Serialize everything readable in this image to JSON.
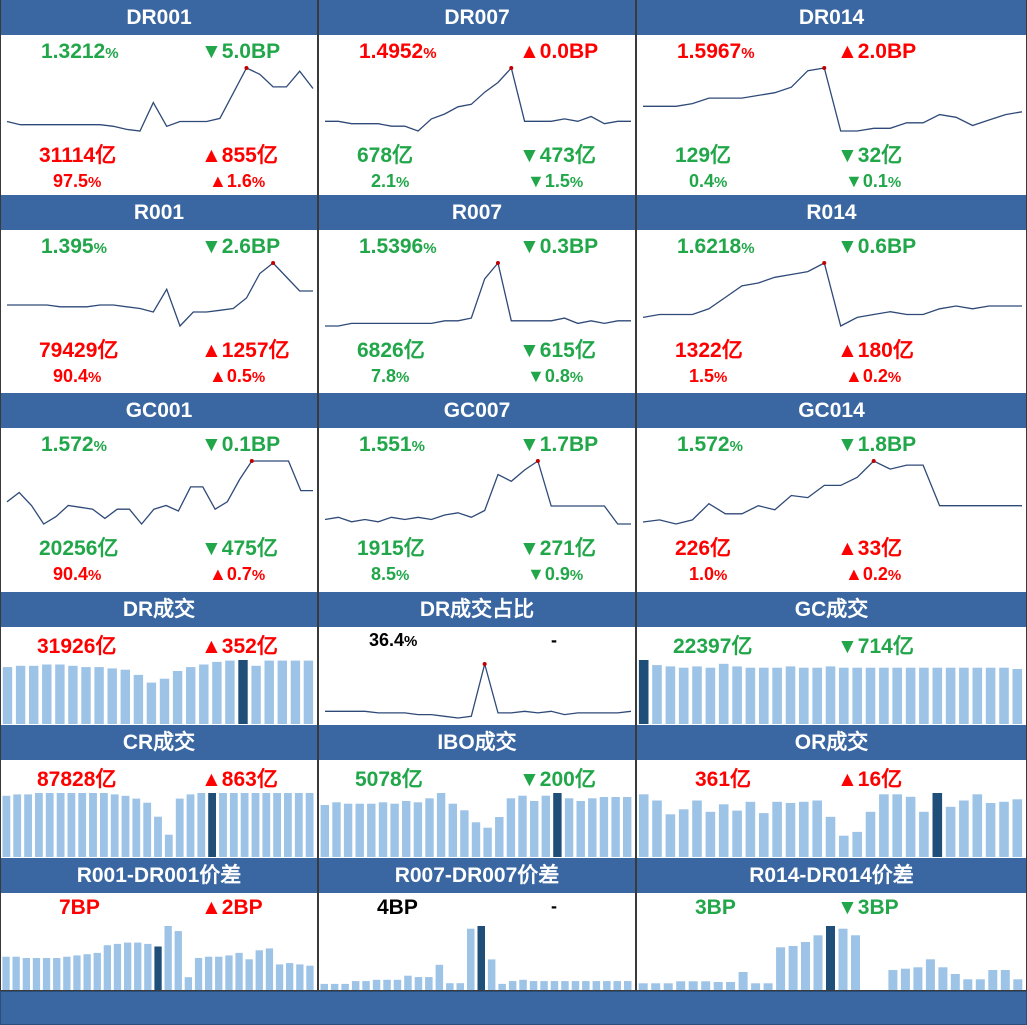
{
  "colors": {
    "header_bg": "#3a67a1",
    "up": "#ff0000",
    "down": "#21a74a",
    "line": "#2f4a78",
    "bar": "#9dc3e6",
    "bar_highlight": "#1f4e79",
    "marker": "#c00000"
  },
  "rows": [
    {
      "type": "rate",
      "cells": [
        {
          "title": "DR001",
          "rate": "1.3212",
          "rate_unit": "%",
          "rate_dir": "down",
          "change": "5.0BP",
          "change_arrow": "▼",
          "change_dir": "down",
          "volume": "31114亿",
          "volume_dir": "up",
          "vol_change": "855亿",
          "vol_arrow": "▲",
          "vol_dir": "up",
          "share": "97.5",
          "share_unit": "%",
          "share_dir": "up",
          "share_change": "1.6",
          "share_change_unit": "%",
          "share_arrow": "▲",
          "share_change_dir": "up",
          "series": [
            62,
            60,
            60,
            60,
            60,
            60,
            60,
            60,
            59,
            57,
            56,
            74,
            59,
            62,
            62,
            62,
            64,
            80,
            96,
            92,
            84,
            84,
            94,
            83
          ]
        },
        {
          "title": "DR007",
          "rate": "1.4952",
          "rate_unit": "%",
          "rate_dir": "up",
          "change": "0.0BP",
          "change_arrow": "▲",
          "change_dir": "up",
          "volume": "678亿",
          "volume_dir": "down",
          "vol_change": "473亿",
          "vol_arrow": "▼",
          "vol_dir": "down",
          "share": "2.1",
          "share_unit": "%",
          "share_dir": "down",
          "share_change": "1.5",
          "share_change_unit": "%",
          "share_arrow": "▼",
          "share_change_dir": "down",
          "series": [
            56,
            56,
            55,
            55,
            55,
            54,
            54,
            52,
            57,
            59,
            62,
            63,
            68,
            72,
            78,
            56,
            56,
            56,
            57,
            56,
            58,
            55,
            56,
            56
          ]
        },
        {
          "title": "DR014",
          "rate": "1.5967",
          "rate_unit": "%",
          "rate_dir": "up",
          "change": "2.0BP",
          "change_arrow": "▲",
          "change_dir": "up",
          "volume": "129亿",
          "volume_dir": "down",
          "vol_change": "32亿",
          "vol_arrow": "▼",
          "vol_dir": "down",
          "share": "0.4",
          "share_unit": "%",
          "share_dir": "down",
          "share_change": "0.1",
          "share_change_unit": "%",
          "share_arrow": "▼",
          "share_change_dir": "down",
          "series": [
            59,
            59,
            59,
            60,
            62,
            62,
            62,
            63,
            64,
            66,
            72,
            73,
            50,
            50,
            51,
            51,
            53,
            53,
            56,
            55,
            52,
            54,
            56,
            57
          ]
        }
      ]
    },
    {
      "type": "rate",
      "cells": [
        {
          "title": "R001",
          "rate": "1.395",
          "rate_unit": "%",
          "rate_dir": "down",
          "change": "2.6BP",
          "change_arrow": "▼",
          "change_dir": "down",
          "volume": "79429亿",
          "volume_dir": "up",
          "vol_change": "1257亿",
          "vol_arrow": "▲",
          "vol_dir": "up",
          "share": "90.4",
          "share_unit": "%",
          "share_dir": "up",
          "share_change": "0.5",
          "share_change_unit": "%",
          "share_arrow": "▲",
          "share_change_dir": "up",
          "series": [
            64,
            64,
            64,
            64,
            63,
            63,
            63,
            64,
            64,
            63,
            62,
            60,
            73,
            52,
            60,
            60,
            61,
            62,
            68,
            82,
            88,
            80,
            72,
            72
          ]
        },
        {
          "title": "R007",
          "rate": "1.5396",
          "rate_unit": "%",
          "rate_dir": "green",
          "change": "0.3BP",
          "change_arrow": "▼",
          "change_dir": "down",
          "volume": "6826亿",
          "volume_dir": "down",
          "vol_change": "615亿",
          "vol_arrow": "▼",
          "vol_dir": "down",
          "share": "7.8",
          "share_unit": "%",
          "share_dir": "down",
          "share_change": "0.8",
          "share_change_unit": "%",
          "share_arrow": "▼",
          "share_change_dir": "down",
          "series": [
            54,
            54,
            55,
            55,
            55,
            55,
            55,
            55,
            55,
            56,
            56,
            57,
            72,
            78,
            56,
            56,
            56,
            56,
            57,
            55,
            56,
            55,
            56,
            56
          ]
        },
        {
          "title": "R014",
          "rate": "1.6218",
          "rate_unit": "%",
          "rate_dir": "down",
          "change": "0.6BP",
          "change_arrow": "▼",
          "change_dir": "down",
          "volume": "1322亿",
          "volume_dir": "up",
          "vol_change": "180亿",
          "vol_arrow": "▲",
          "vol_dir": "up",
          "share": "1.5",
          "share_unit": "%",
          "share_dir": "up",
          "share_change": "0.2",
          "share_change_unit": "%",
          "share_arrow": "▲",
          "share_change_dir": "up",
          "series": [
            59,
            60,
            60,
            60,
            62,
            66,
            70,
            71,
            73,
            74,
            75,
            78,
            56,
            59,
            60,
            61,
            60,
            60,
            62,
            63,
            62,
            63,
            63,
            63
          ]
        }
      ]
    },
    {
      "type": "rate",
      "cells": [
        {
          "title": "GC001",
          "rate": "1.572",
          "rate_unit": "%",
          "rate_dir": "down",
          "change": "0.1BP",
          "change_arrow": "▼",
          "change_dir": "down",
          "volume": "20256亿",
          "volume_dir": "down",
          "vol_change": "475亿",
          "vol_arrow": "▼",
          "vol_dir": "down",
          "share": "90.4",
          "share_unit": "%",
          "share_dir": "up",
          "share_change": "0.7",
          "share_change_unit": "%",
          "share_arrow": "▲",
          "share_change_dir": "up",
          "series": [
            60,
            65,
            58,
            48,
            52,
            58,
            57,
            56,
            51,
            56,
            56,
            48,
            56,
            58,
            55,
            68,
            68,
            56,
            60,
            72,
            82,
            82,
            82,
            82,
            66,
            66
          ]
        },
        {
          "title": "GC007",
          "rate": "1.551",
          "rate_unit": "%",
          "rate_dir": "down",
          "change": "1.7BP",
          "change_arrow": "▼",
          "change_dir": "down",
          "volume": "1915亿",
          "volume_dir": "down",
          "vol_change": "271亿",
          "vol_arrow": "▼",
          "vol_dir": "down",
          "share": "8.5",
          "share_unit": "%",
          "share_dir": "down",
          "share_change": "0.9",
          "share_change_unit": "%",
          "share_arrow": "▼",
          "share_change_dir": "down",
          "series": [
            54,
            55,
            53,
            54,
            53,
            55,
            54,
            55,
            54,
            56,
            57,
            55,
            58,
            74,
            71,
            76,
            80,
            60,
            60,
            60,
            60,
            60,
            52,
            52
          ]
        },
        {
          "title": "GC014",
          "rate": "1.572",
          "rate_unit": "%",
          "rate_dir": "down",
          "change": "1.8BP",
          "change_arrow": "▼",
          "change_dir": "down",
          "volume": "226亿",
          "volume_dir": "up",
          "vol_change": "33亿",
          "vol_arrow": "▲",
          "vol_dir": "up",
          "share": "1.0",
          "share_unit": "%",
          "share_dir": "up",
          "share_change": "0.2",
          "share_change_unit": "%",
          "share_arrow": "▲",
          "share_change_dir": "up",
          "series": [
            52,
            53,
            51,
            53,
            61,
            56,
            56,
            60,
            58,
            65,
            64,
            70,
            70,
            74,
            82,
            78,
            80,
            80,
            60,
            60,
            60,
            60,
            60,
            60
          ]
        }
      ]
    },
    {
      "type": "volume",
      "cells": [
        {
          "title": "DR成交",
          "volume": "31926亿",
          "volume_dir": "up",
          "change": "352亿",
          "change_arrow": "▲",
          "change_dir": "up",
          "chart": "bar",
          "series": [
            88,
            90,
            90,
            92,
            92,
            90,
            88,
            88,
            86,
            84,
            76,
            64,
            70,
            82,
            88,
            92,
            96,
            98,
            99,
            90,
            98,
            98,
            98,
            98
          ],
          "highlight": 18
        },
        {
          "title": "DR成交占比",
          "volume": "36.4",
          "volume_unit": "%",
          "volume_dir": "neutral",
          "change": "-",
          "change_arrow": "",
          "change_dir": "neutral",
          "chart": "line",
          "series": [
            52,
            52,
            52,
            52,
            51,
            51,
            51,
            50,
            50,
            49,
            48,
            49,
            80,
            51,
            51,
            52,
            51,
            52,
            50,
            51,
            51,
            51,
            51,
            52
          ],
          "marker": 12
        },
        {
          "title": "GC成交",
          "volume": "22397亿",
          "volume_dir": "down",
          "change": "714亿",
          "change_arrow": "▼",
          "change_dir": "down",
          "chart": "bar",
          "series": [
            100,
            92,
            90,
            88,
            90,
            88,
            94,
            90,
            88,
            88,
            88,
            90,
            88,
            88,
            90,
            88,
            88,
            88,
            88,
            88,
            88,
            88,
            88,
            88,
            88,
            88,
            88,
            88,
            86
          ],
          "highlight": 0
        }
      ]
    },
    {
      "type": "volume",
      "cells": [
        {
          "title": "CR成交",
          "volume": "87828亿",
          "volume_dir": "up",
          "change": "863亿",
          "change_arrow": "▲",
          "change_dir": "up",
          "chart": "bar",
          "series": [
            88,
            90,
            90,
            92,
            92,
            92,
            92,
            92,
            92,
            92,
            90,
            88,
            84,
            78,
            58,
            32,
            84,
            90,
            92,
            92,
            92,
            92,
            92,
            92,
            92,
            92,
            92,
            92,
            92
          ],
          "highlight": 19
        },
        {
          "title": "IBO成交",
          "volume": "5078亿",
          "volume_dir": "green",
          "change": "200亿",
          "change_arrow": "▼",
          "change_dir": "down",
          "chart": "bar",
          "series": [
            78,
            82,
            80,
            80,
            80,
            82,
            80,
            84,
            82,
            88,
            96,
            80,
            70,
            52,
            44,
            60,
            88,
            92,
            84,
            92,
            96,
            88,
            84,
            88,
            90,
            90,
            90
          ],
          "highlight": 20
        },
        {
          "title": "OR成交",
          "volume": "361亿",
          "volume_dir": "up",
          "change": "16亿",
          "change_arrow": "▲",
          "change_dir": "up",
          "chart": "bar",
          "series": [
            100,
            90,
            68,
            76,
            90,
            72,
            84,
            74,
            88,
            70,
            88,
            86,
            88,
            90,
            64,
            34,
            40,
            72,
            100,
            100,
            96,
            72,
            102,
            80,
            90,
            100,
            86,
            88,
            92
          ],
          "highlight": 22
        }
      ]
    },
    {
      "type": "spread",
      "cells": [
        {
          "title": "R001-DR001价差",
          "volume": "7BP",
          "volume_dir": "up",
          "change": "2BP",
          "change_arrow": "▲",
          "change_dir": "up",
          "chart": "bar",
          "series": [
            52,
            52,
            50,
            50,
            50,
            50,
            52,
            54,
            56,
            58,
            70,
            72,
            74,
            74,
            72,
            68,
            100,
            92,
            20,
            50,
            52,
            52,
            54,
            58,
            48,
            62,
            65,
            40,
            42,
            40,
            38
          ],
          "highlight": 15
        },
        {
          "title": "R007-DR007价差",
          "volume": "4BP",
          "volume_dir": "neutral",
          "change": "-",
          "change_arrow": "",
          "change_dir": "neutral",
          "chart": "bar",
          "series": [
            9,
            9,
            9,
            13,
            13,
            15,
            15,
            15,
            21,
            19,
            19,
            37,
            10,
            10,
            90,
            94,
            45,
            9,
            13,
            15,
            13,
            13,
            13,
            13,
            13,
            13,
            13,
            13,
            13,
            13
          ],
          "highlight": 15
        },
        {
          "title": "R014-DR014价差",
          "volume": "3BP",
          "volume_dir": "down",
          "change": "3BP",
          "change_arrow": "▼",
          "change_dir": "down",
          "chart": "bar",
          "series": [
            10,
            10,
            10,
            13,
            13,
            13,
            12,
            12,
            27,
            10,
            10,
            64,
            66,
            72,
            82,
            96,
            92,
            82,
            0,
            0,
            30,
            32,
            34,
            46,
            34,
            24,
            16,
            16,
            30,
            30,
            16
          ],
          "highlight": 15
        }
      ]
    }
  ]
}
